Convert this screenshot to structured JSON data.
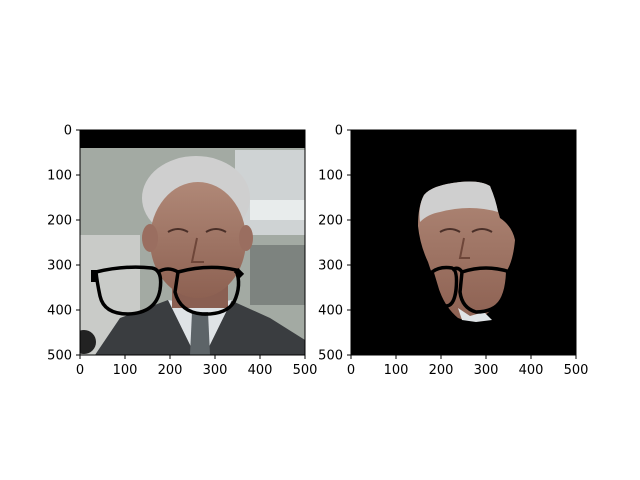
{
  "figure": {
    "background": "#ffffff"
  },
  "chart_data": [
    {
      "type": "image",
      "title": "",
      "xlabel": "",
      "ylabel": "",
      "xlim": [
        0,
        500
      ],
      "ylim": [
        500,
        0
      ],
      "xticks": [
        0,
        100,
        200,
        300,
        400,
        500
      ],
      "yticks": [
        0,
        100,
        200,
        300,
        400,
        500
      ],
      "xtick_labels": [
        "0",
        "100",
        "200",
        "300",
        "400",
        "500"
      ],
      "ytick_labels": [
        "0",
        "100",
        "200",
        "300",
        "400",
        "500"
      ],
      "grid": false,
      "content": "face photo with black eyeglasses overlay drawn around mouth/chin",
      "colors": {
        "top_band": "#000000",
        "background": "#9aa49a",
        "glasses": "#000000"
      }
    },
    {
      "type": "image",
      "title": "",
      "xlabel": "",
      "ylabel": "",
      "xlim": [
        0,
        500
      ],
      "ylim": [
        500,
        0
      ],
      "xticks": [
        0,
        100,
        200,
        300,
        400,
        500
      ],
      "yticks": [
        0,
        100,
        200,
        300,
        400,
        500
      ],
      "xtick_labels": [
        "0",
        "100",
        "200",
        "300",
        "400",
        "500"
      ],
      "ytick_labels": [
        "0",
        "100",
        "200",
        "300",
        "400",
        "500"
      ],
      "grid": false,
      "content": "segmented face region on black background with eyeglasses overlay",
      "colors": {
        "background": "#000000",
        "glasses": "#000000"
      }
    }
  ]
}
